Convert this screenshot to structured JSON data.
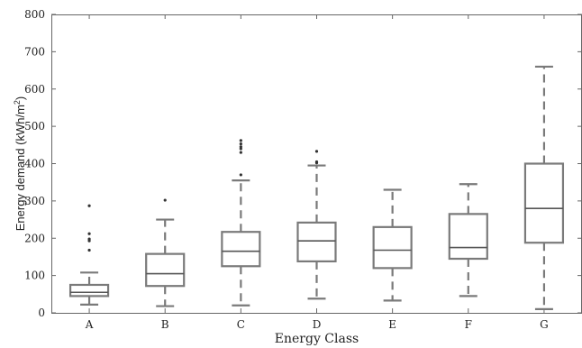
{
  "chart_data": {
    "type": "box",
    "xlabel": "Energy Class",
    "ylabel_main": "Energy demand (kWh/m",
    "ylabel_sup": "2",
    "ylabel_close": ")",
    "ylim": [
      0,
      800
    ],
    "yticks": [
      0,
      100,
      200,
      300,
      400,
      500,
      600,
      700,
      800
    ],
    "grid": false,
    "colors": {
      "box": "#7a7a7a",
      "median": "#555555",
      "outlier": "#333333",
      "axis": "#666666"
    },
    "categories": [
      "A",
      "B",
      "C",
      "D",
      "E",
      "F",
      "G"
    ],
    "boxes": [
      {
        "category": "A",
        "whisker_low": 22,
        "q1": 45,
        "median": 55,
        "q3": 75,
        "whisker_high": 108,
        "outliers": [
          168,
          193,
          198,
          212,
          287
        ]
      },
      {
        "category": "B",
        "whisker_low": 18,
        "q1": 72,
        "median": 105,
        "q3": 158,
        "whisker_high": 250,
        "outliers": [
          302
        ]
      },
      {
        "category": "C",
        "whisker_low": 20,
        "q1": 125,
        "median": 165,
        "q3": 217,
        "whisker_high": 355,
        "outliers": [
          370,
          430,
          440,
          445,
          453,
          462
        ]
      },
      {
        "category": "D",
        "whisker_low": 38,
        "q1": 138,
        "median": 193,
        "q3": 242,
        "whisker_high": 395,
        "outliers": [
          402,
          405,
          433
        ]
      },
      {
        "category": "E",
        "whisker_low": 33,
        "q1": 120,
        "median": 168,
        "q3": 230,
        "whisker_high": 330,
        "outliers": []
      },
      {
        "category": "F",
        "whisker_low": 45,
        "q1": 145,
        "median": 175,
        "q3": 265,
        "whisker_high": 345,
        "outliers": []
      },
      {
        "category": "G",
        "whisker_low": 10,
        "q1": 188,
        "median": 280,
        "q3": 400,
        "whisker_high": 660,
        "outliers": []
      }
    ]
  }
}
